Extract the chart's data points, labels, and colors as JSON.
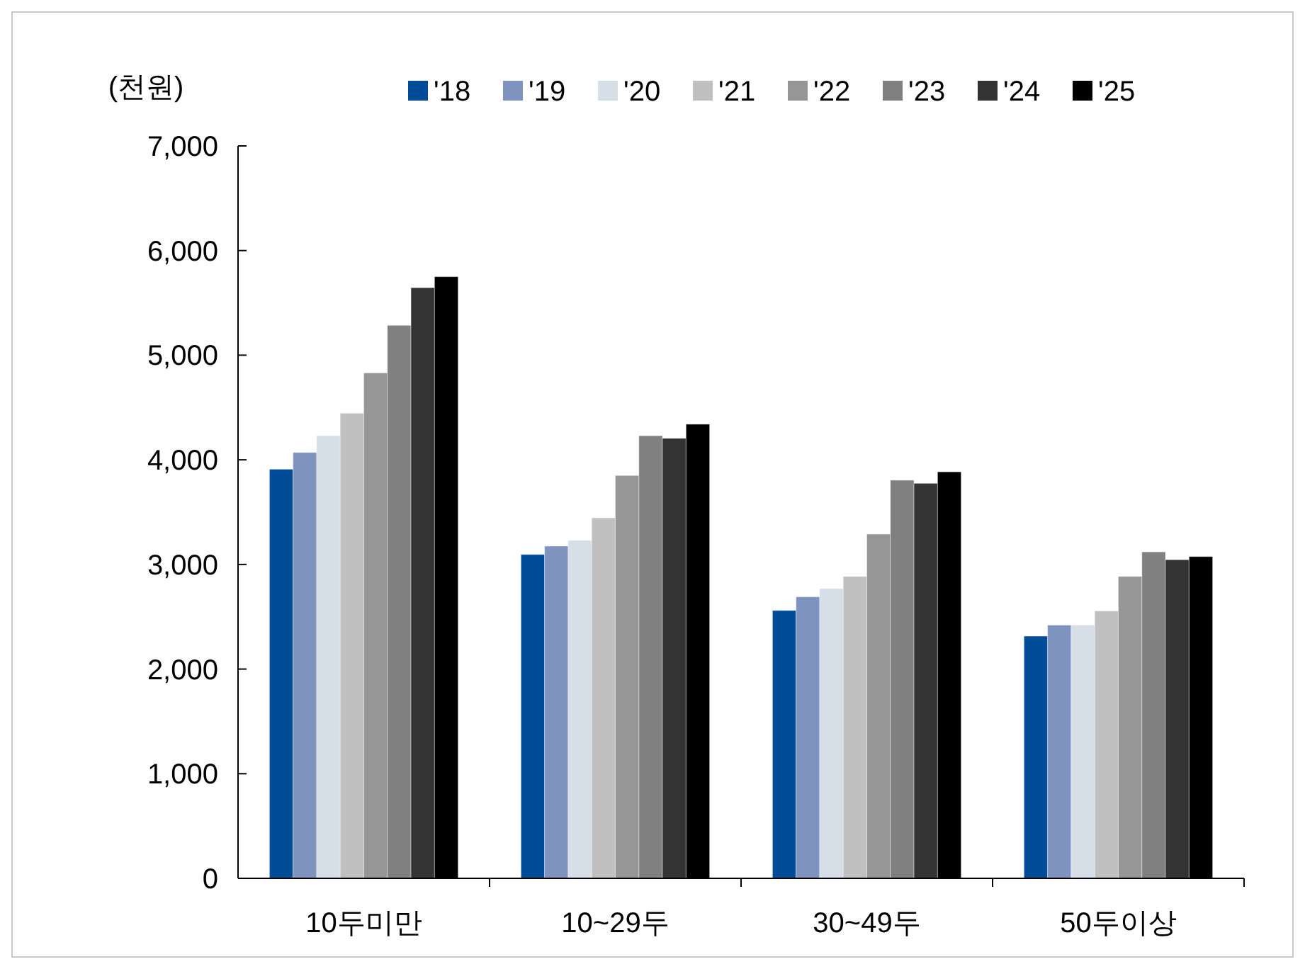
{
  "chart_data": {
    "type": "bar",
    "ylabel": "(천원)",
    "categories": [
      "10두미만",
      "10~29두",
      "30~49두",
      "50두이상"
    ],
    "series": [
      {
        "name": "'18",
        "color": "#004c97",
        "values": [
          3910,
          3095,
          2560,
          2315
        ]
      },
      {
        "name": "'19",
        "color": "#7f93bf",
        "values": [
          4070,
          3175,
          2690,
          2420
        ]
      },
      {
        "name": "'20",
        "color": "#d6dee7",
        "values": [
          4230,
          3230,
          2770,
          2420
        ]
      },
      {
        "name": "'21",
        "color": "#c0c0c0",
        "values": [
          4445,
          3445,
          2885,
          2555
        ]
      },
      {
        "name": "'22",
        "color": "#969696",
        "values": [
          4830,
          3850,
          3290,
          2885
        ]
      },
      {
        "name": "'23",
        "color": "#808080",
        "values": [
          5285,
          4230,
          3805,
          3120
        ]
      },
      {
        "name": "'24",
        "color": "#333333",
        "values": [
          5645,
          4205,
          3775,
          3045
        ]
      },
      {
        "name": "'25",
        "color": "#000000",
        "values": [
          5750,
          4340,
          3885,
          3075
        ]
      }
    ],
    "ylim": [
      0,
      7000
    ],
    "yticks": [
      {
        "value": 0,
        "label": "0"
      },
      {
        "value": 1000,
        "label": "1,000"
      },
      {
        "value": 2000,
        "label": "2,000"
      },
      {
        "value": 3000,
        "label": "3,000"
      },
      {
        "value": 4000,
        "label": "4,000"
      },
      {
        "value": 5000,
        "label": "5,000"
      },
      {
        "value": 6000,
        "label": "6,000"
      },
      {
        "value": 7000,
        "label": "7,000"
      }
    ],
    "grid": false,
    "legend": "top"
  }
}
